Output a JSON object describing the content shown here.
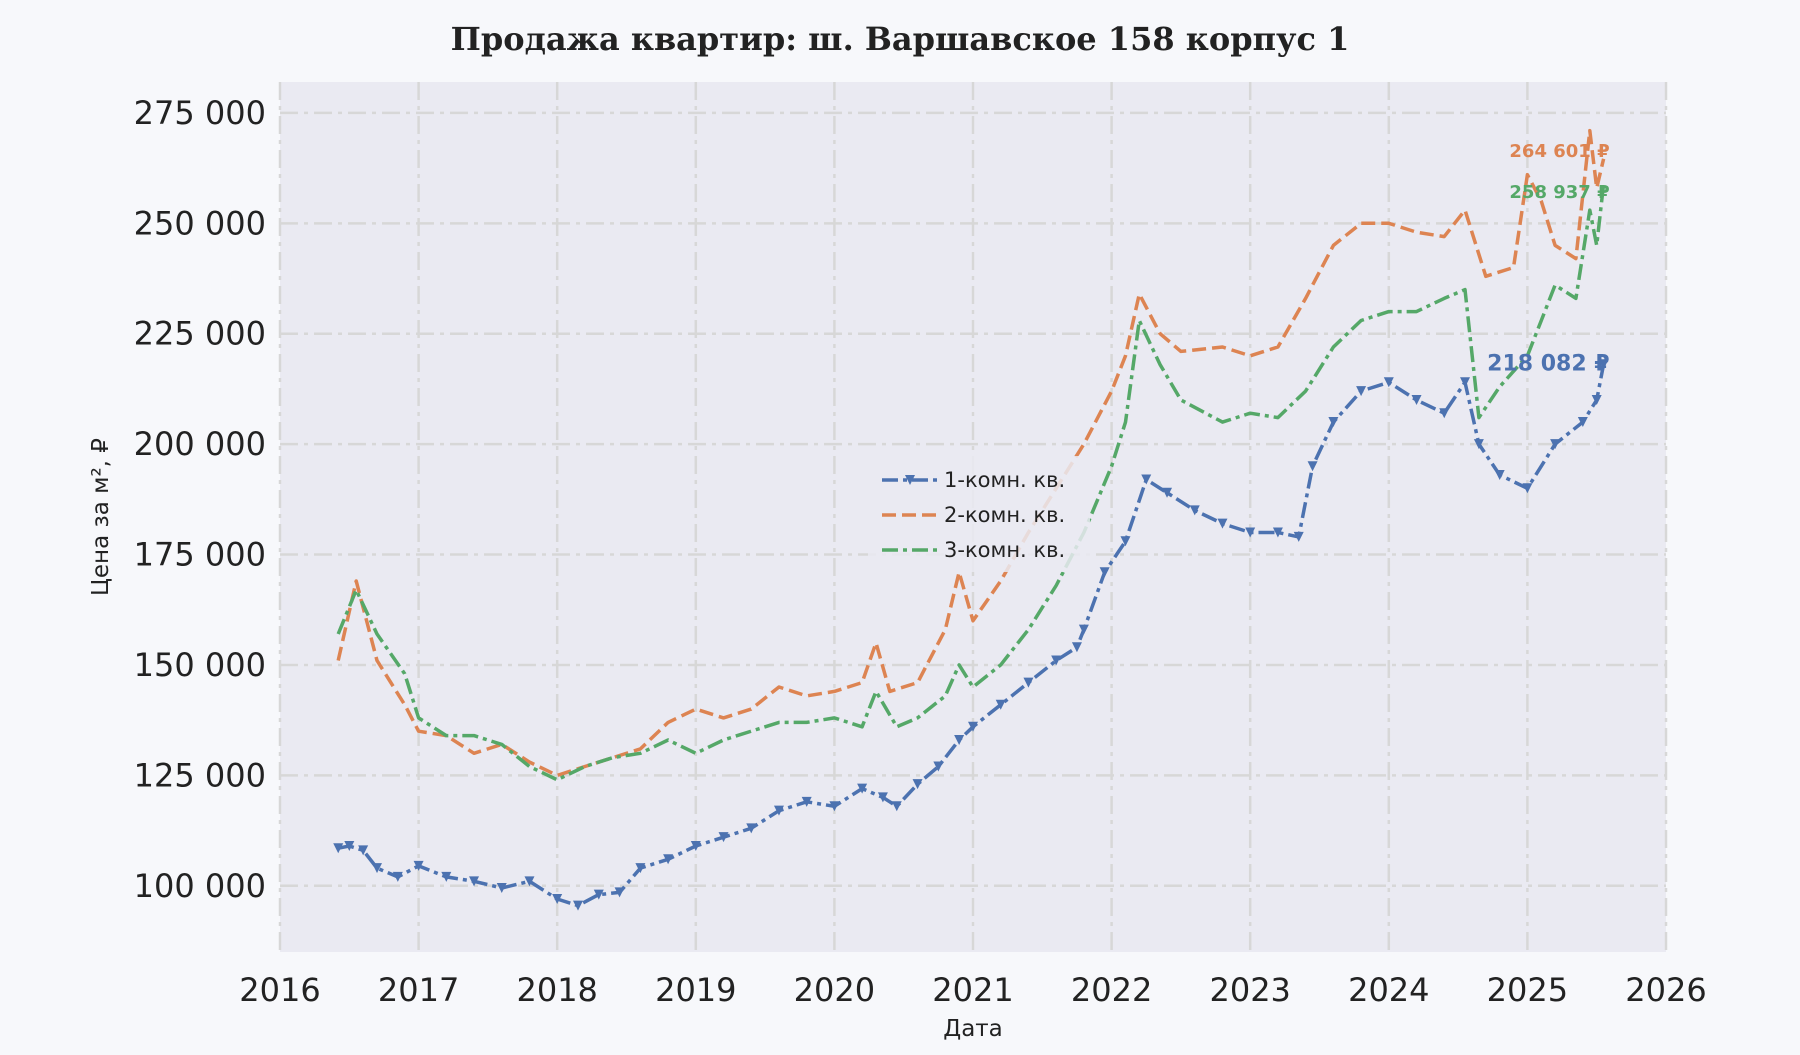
{
  "chart_data": {
    "type": "line",
    "title": "Продажа квартир: ш. Варшавское 158 корпус 1",
    "xlabel": "Дата",
    "ylabel": "Цена за м², ₽",
    "xlim": [
      2016,
      2026
    ],
    "ylim": [
      85000,
      282000
    ],
    "x_ticks": [
      "2016",
      "2017",
      "2018",
      "2019",
      "2020",
      "2021",
      "2022",
      "2023",
      "2024",
      "2025",
      "2026"
    ],
    "y_ticks": [
      {
        "value": 100000,
        "label": "100 000"
      },
      {
        "value": 125000,
        "label": "125 000"
      },
      {
        "value": 150000,
        "label": "150 000"
      },
      {
        "value": 175000,
        "label": "175 000"
      },
      {
        "value": 200000,
        "label": "200 000"
      },
      {
        "value": 225000,
        "label": "225 000"
      },
      {
        "value": 250000,
        "label": "250 000"
      },
      {
        "value": 275000,
        "label": "275 000"
      }
    ],
    "grid": true,
    "legend_position": "center",
    "series": [
      {
        "name": "1-комн. кв.",
        "color": "#4c72b0",
        "linestyle": "dashdot",
        "marker": "triangle-down",
        "end_label": "218 082 ₽",
        "x": [
          2016.42,
          2016.5,
          2016.6,
          2016.7,
          2016.85,
          2017.0,
          2017.2,
          2017.4,
          2017.6,
          2017.8,
          2018.0,
          2018.15,
          2018.3,
          2018.45,
          2018.6,
          2018.8,
          2019.0,
          2019.2,
          2019.4,
          2019.6,
          2019.8,
          2020.0,
          2020.2,
          2020.35,
          2020.45,
          2020.6,
          2020.75,
          2020.9,
          2021.0,
          2021.2,
          2021.4,
          2021.6,
          2021.75,
          2021.8,
          2021.95,
          2022.1,
          2022.25,
          2022.4,
          2022.6,
          2022.8,
          2023.0,
          2023.2,
          2023.35,
          2023.45,
          2023.6,
          2023.8,
          2024.0,
          2024.2,
          2024.4,
          2024.55,
          2024.65,
          2024.8,
          2025.0,
          2025.2,
          2025.4,
          2025.5,
          2025.55
        ],
        "values": [
          108500,
          109000,
          108000,
          104000,
          102000,
          104500,
          102000,
          101000,
          99500,
          101000,
          97000,
          95500,
          98000,
          98500,
          104000,
          106000,
          109000,
          111000,
          113000,
          117000,
          119000,
          118000,
          122000,
          120000,
          118000,
          123000,
          127000,
          133000,
          136000,
          141000,
          146000,
          151000,
          154000,
          158000,
          171000,
          178000,
          192000,
          189000,
          185000,
          182000,
          180000,
          180000,
          179000,
          195000,
          205000,
          212000,
          214000,
          210000,
          207000,
          214000,
          200000,
          193000,
          190000,
          200000,
          205000,
          210000,
          218082
        ]
      },
      {
        "name": "2-комн. кв.",
        "color": "#dd8452",
        "linestyle": "dashed",
        "marker": "none",
        "end_label": "264 601 ₽",
        "x": [
          2016.42,
          2016.55,
          2016.7,
          2016.9,
          2017.0,
          2017.2,
          2017.4,
          2017.6,
          2017.8,
          2018.0,
          2018.2,
          2018.4,
          2018.6,
          2018.8,
          2019.0,
          2019.2,
          2019.4,
          2019.6,
          2019.8,
          2020.0,
          2020.2,
          2020.3,
          2020.4,
          2020.6,
          2020.8,
          2020.9,
          2021.0,
          2021.2,
          2021.4,
          2021.6,
          2021.8,
          2022.0,
          2022.1,
          2022.2,
          2022.35,
          2022.5,
          2022.8,
          2023.0,
          2023.2,
          2023.4,
          2023.6,
          2023.8,
          2024.0,
          2024.2,
          2024.4,
          2024.55,
          2024.7,
          2024.9,
          2025.0,
          2025.1,
          2025.2,
          2025.35,
          2025.45,
          2025.5,
          2025.55
        ],
        "values": [
          151000,
          169000,
          151000,
          141000,
          135000,
          134000,
          130000,
          132000,
          128000,
          125000,
          127000,
          129000,
          131000,
          137000,
          140000,
          138000,
          140000,
          145000,
          143000,
          144000,
          146000,
          155000,
          144000,
          146000,
          158000,
          171000,
          160000,
          169000,
          180000,
          190000,
          200000,
          212000,
          220000,
          234000,
          225000,
          221000,
          222000,
          220000,
          222000,
          233000,
          245000,
          250000,
          250000,
          248000,
          247000,
          253000,
          238000,
          240000,
          261000,
          255000,
          245000,
          242000,
          271000,
          258000,
          264601
        ]
      },
      {
        "name": "3-комн. кв.",
        "color": "#55a868",
        "linestyle": "dashdot",
        "marker": "none",
        "end_label": "258 937 ₽",
        "x": [
          2016.42,
          2016.55,
          2016.7,
          2016.9,
          2017.0,
          2017.2,
          2017.4,
          2017.6,
          2017.8,
          2018.0,
          2018.2,
          2018.4,
          2018.6,
          2018.8,
          2019.0,
          2019.2,
          2019.4,
          2019.6,
          2019.8,
          2020.0,
          2020.2,
          2020.3,
          2020.45,
          2020.6,
          2020.8,
          2020.9,
          2021.0,
          2021.2,
          2021.4,
          2021.6,
          2021.8,
          2022.0,
          2022.1,
          2022.2,
          2022.35,
          2022.5,
          2022.8,
          2023.0,
          2023.2,
          2023.4,
          2023.6,
          2023.8,
          2024.0,
          2024.2,
          2024.4,
          2024.55,
          2024.65,
          2024.8,
          2025.0,
          2025.1,
          2025.2,
          2025.35,
          2025.45,
          2025.5,
          2025.55
        ],
        "values": [
          157000,
          167000,
          157000,
          148000,
          138000,
          134000,
          134000,
          132000,
          127000,
          124000,
          127000,
          129000,
          130000,
          133000,
          130000,
          133000,
          135000,
          137000,
          137000,
          138000,
          136000,
          144000,
          136000,
          138000,
          143000,
          150000,
          145000,
          150000,
          158000,
          168000,
          180000,
          195000,
          205000,
          228000,
          218000,
          210000,
          205000,
          207000,
          206000,
          212000,
          222000,
          228000,
          230000,
          230000,
          233000,
          235000,
          206000,
          213000,
          220000,
          228000,
          236000,
          233000,
          253000,
          245000,
          258937
        ]
      }
    ]
  }
}
